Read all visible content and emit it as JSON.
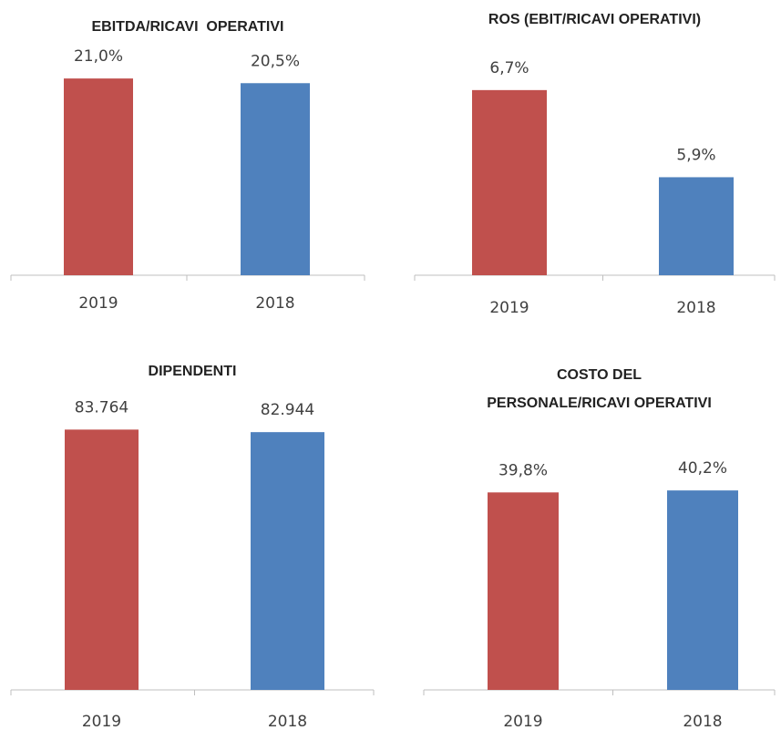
{
  "chart_data": [
    {
      "type": "bar",
      "title": [
        "EBITDA/RICAVI  OPERATIVI"
      ],
      "categories": [
        "2019",
        "2018"
      ],
      "values": [
        21.0,
        20.5
      ],
      "value_labels": [
        "21,0%",
        "20,5%"
      ],
      "colors": [
        "#c0504d",
        "#4f81bd"
      ],
      "ylim": [
        0,
        25
      ]
    },
    {
      "type": "bar",
      "title": [
        "ROS (EBIT/RICAVI OPERATIVI)"
      ],
      "categories": [
        "2019",
        "2018"
      ],
      "values": [
        6.7,
        5.9
      ],
      "value_labels": [
        "6,7%",
        "5,9%"
      ],
      "colors": [
        "#c0504d",
        "#4f81bd"
      ],
      "ylim": [
        5,
        7
      ]
    },
    {
      "type": "bar",
      "title": [
        "DIPENDENTI"
      ],
      "categories": [
        "2019",
        "2018"
      ],
      "values": [
        83764,
        82944
      ],
      "value_labels": [
        "83.764",
        "82.944"
      ],
      "colors": [
        "#c0504d",
        "#4f81bd"
      ],
      "ylim": [
        0,
        100000
      ]
    },
    {
      "type": "bar",
      "title": [
        "COSTO DEL",
        "PERSONALE/RICAVI OPERATIVI"
      ],
      "categories": [
        "2019",
        "2018"
      ],
      "values": [
        39.8,
        40.2
      ],
      "value_labels": [
        "39,8%",
        "40,2%"
      ],
      "colors": [
        "#c0504d",
        "#4f81bd"
      ],
      "ylim": [
        0,
        45
      ]
    }
  ]
}
